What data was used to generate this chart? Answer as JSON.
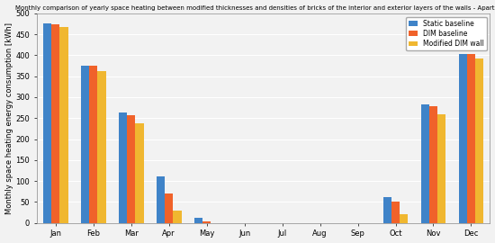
{
  "title": "Monthly comparison of yearly space heating between modified thicknesses and densities of bricks of the interior and exterior layers of the walls - Apartment",
  "ylabel": "Monthly space heating energy consumption [kWh]",
  "months": [
    "Jan",
    "Feb",
    "Mar",
    "Apr",
    "May",
    "Jun",
    "Jul",
    "Aug",
    "Sep",
    "Oct",
    "Nov",
    "Dec"
  ],
  "series": {
    "Static baseline": {
      "color": "#3f83c8",
      "values": [
        475,
        375,
        263,
        112,
        13,
        0,
        0,
        0,
        0,
        62,
        283,
        403
      ]
    },
    "DIM baseline": {
      "color": "#f0622a",
      "values": [
        474,
        374,
        258,
        70,
        4,
        0,
        0,
        0,
        0,
        52,
        278,
        402
      ]
    },
    "Modified DIM wall": {
      "color": "#f0b730",
      "values": [
        468,
        362,
        238,
        30,
        0,
        0,
        0,
        0,
        0,
        20,
        260,
        393
      ]
    }
  },
  "ylim": [
    0,
    500
  ],
  "yticks": [
    0,
    50,
    100,
    150,
    200,
    250,
    300,
    350,
    400,
    450,
    500
  ],
  "bar_width": 0.22,
  "figsize": [
    5.5,
    2.7
  ],
  "dpi": 100,
  "legend_loc": "upper right",
  "title_fontsize": 5.0,
  "ylabel_fontsize": 6.0,
  "tick_fontsize": 6.0,
  "legend_fontsize": 5.5,
  "bg_color": "#f0f0f0",
  "grid_color": "#ffffff",
  "axes_bg": "#f8f8f8"
}
